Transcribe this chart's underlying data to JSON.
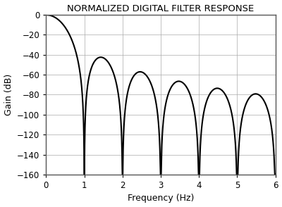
{
  "title": "NORMALIZED DIGITAL FILTER RESPONSE",
  "xlabel": "Frequency (Hz)",
  "ylabel": "Gain (dB)",
  "xlim": [
    0,
    6
  ],
  "ylim": [
    -160,
    0
  ],
  "yticks": [
    0,
    -20,
    -40,
    -60,
    -80,
    -100,
    -120,
    -140,
    -160
  ],
  "xticks": [
    0,
    1,
    2,
    3,
    4,
    5,
    6
  ],
  "line_color": "#000000",
  "line_width": 1.5,
  "background_color": "#ffffff",
  "grid_color": "#aaaaaa",
  "title_fontsize": 9.5,
  "label_fontsize": 9,
  "tick_fontsize": 8.5,
  "figsize": [
    4.0,
    2.94
  ],
  "dpi": 100,
  "sinc_power": 4,
  "freq_scale": 1.0,
  "n_points": 10000
}
